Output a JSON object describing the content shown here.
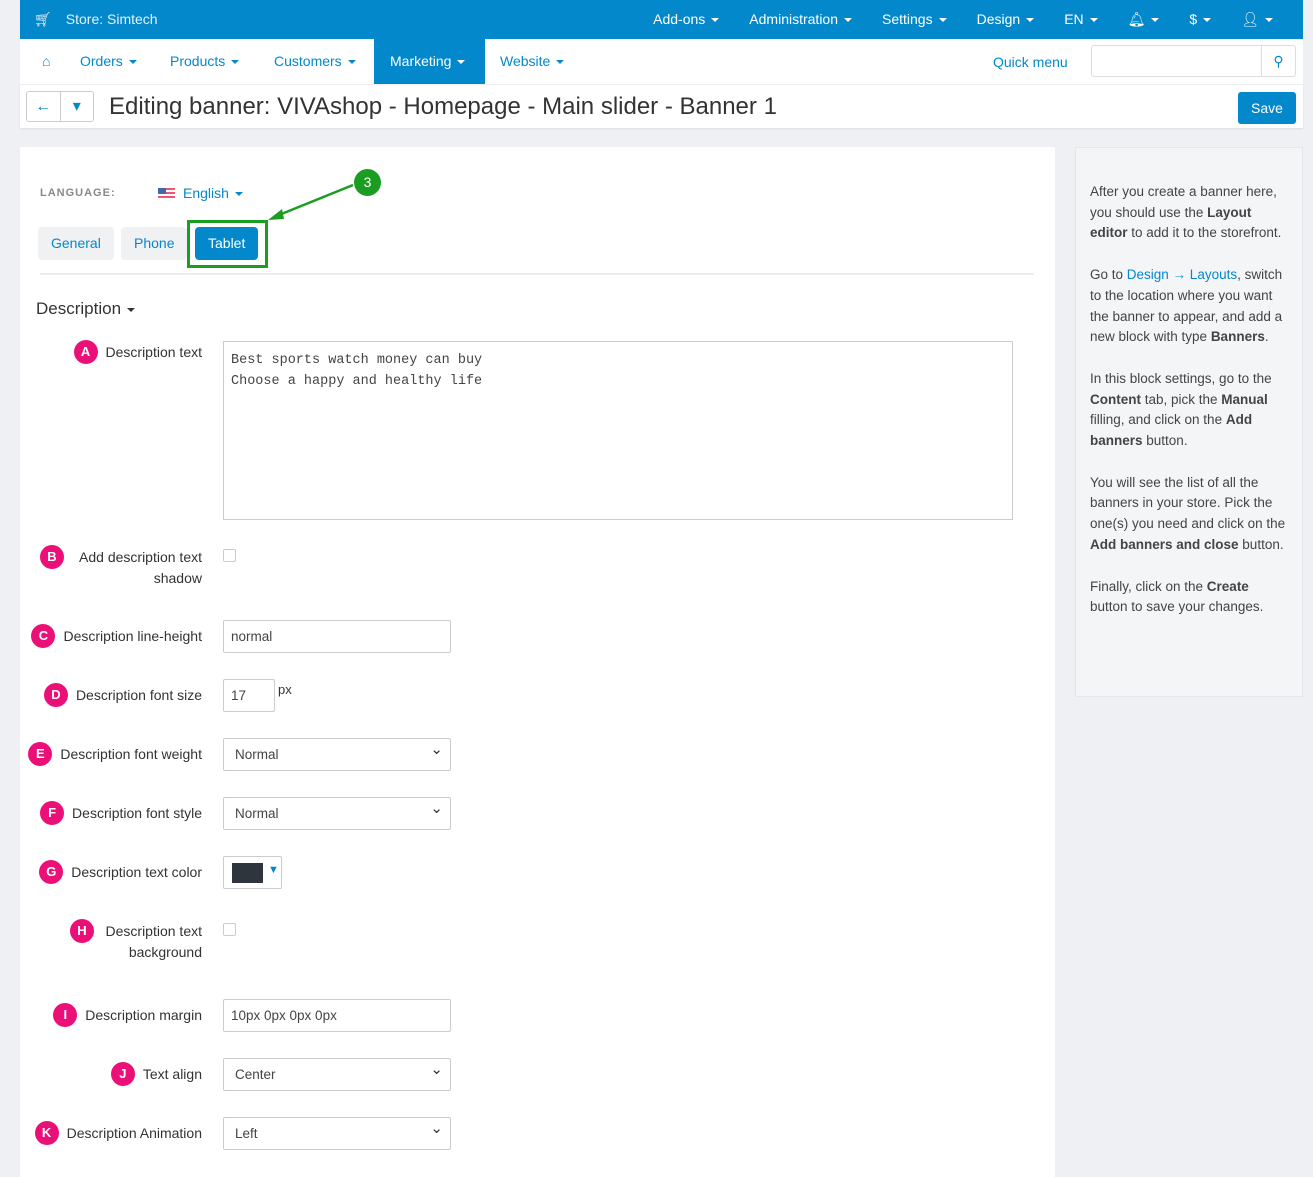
{
  "topbar": {
    "store": "Store: Simtech",
    "menu": [
      "Add-ons",
      "Administration",
      "Settings",
      "Design",
      "EN"
    ],
    "currency": "$"
  },
  "navbar": {
    "items": [
      "Orders",
      "Products",
      "Customers",
      "Marketing",
      "Website"
    ],
    "active": "Marketing",
    "quick_menu": "Quick menu",
    "search_placeholder": ""
  },
  "titlebar": {
    "title": "Editing banner: VIVAshop - Homepage - Main slider - Banner 1",
    "save": "Save"
  },
  "language": {
    "label": "LANGUAGE:",
    "value": "English"
  },
  "tabs": [
    "General",
    "Phone",
    "Tablet"
  ],
  "active_tab": "Tablet",
  "annotation": "3",
  "section": "Description",
  "fields": {
    "a": {
      "badge": "A",
      "label": "Description text",
      "value": "Best sports watch money can buy\nChoose a happy and healthy life"
    },
    "b": {
      "badge": "B",
      "label": "Add description text shadow",
      "checked": false
    },
    "c": {
      "badge": "C",
      "label": "Description line-height",
      "value": "normal"
    },
    "d": {
      "badge": "D",
      "label": "Description font size",
      "value": "17",
      "unit": "px"
    },
    "e": {
      "badge": "E",
      "label": "Description font weight",
      "value": "Normal"
    },
    "f": {
      "badge": "F",
      "label": "Description font style",
      "value": "Normal"
    },
    "g": {
      "badge": "G",
      "label": "Description text color",
      "color": "#2e353d"
    },
    "h": {
      "badge": "H",
      "label": "Description text background",
      "checked": false
    },
    "i": {
      "badge": "I",
      "label": "Description margin",
      "value": "10px 0px 0px 0px"
    },
    "j": {
      "badge": "J",
      "label": "Text align",
      "value": "Center"
    },
    "k": {
      "badge": "K",
      "label": "Description Animation",
      "value": "Left"
    }
  },
  "sidebar": {
    "p1": [
      "After you create a banner here, you should use the ",
      "Layout editor",
      " to add it to the storefront."
    ],
    "p2": [
      "Go to ",
      "Design → Layouts",
      ", switch to the location where you want the banner to appear, and add a new block with type ",
      "Banners",
      "."
    ],
    "p3": [
      "In this block settings, go to the ",
      "Content",
      " tab, pick the ",
      "Manual",
      " filling, and click on the ",
      "Add banners",
      " button."
    ],
    "p4": [
      "You will see the list of all the banners in your store. Pick the one(s) you need and click on the ",
      "Add banners and close",
      " button."
    ],
    "p5": [
      "Finally, click on the ",
      "Create",
      " button to save your changes."
    ]
  }
}
